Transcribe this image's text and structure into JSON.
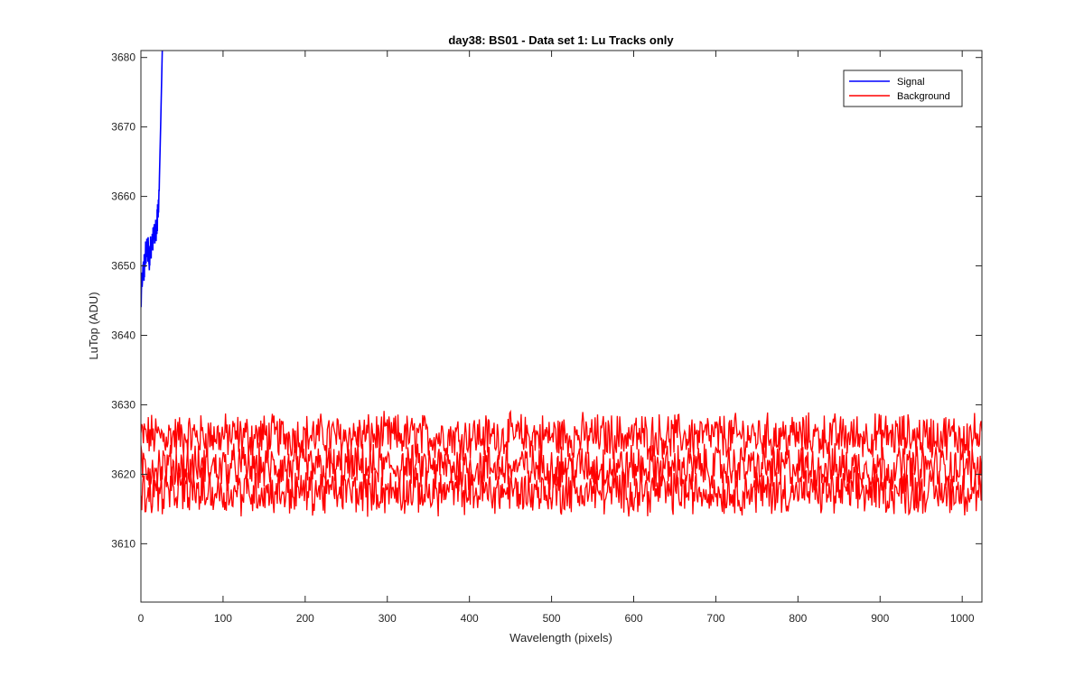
{
  "chart_data": {
    "type": "line",
    "title": "day38: BS01 - Data set 1: Lu Tracks only",
    "xlabel": "Wavelength (pixels)",
    "ylabel": "LuTop (ADU)",
    "xlim": [
      0,
      1024
    ],
    "ylim": [
      3601.6,
      3681
    ],
    "x_ticks": [
      0,
      100,
      200,
      300,
      400,
      500,
      600,
      700,
      800,
      900,
      1000
    ],
    "y_ticks": [
      3610,
      3620,
      3630,
      3640,
      3650,
      3660,
      3670,
      3680
    ],
    "grid": false,
    "legend_position": "top-right",
    "legend": [
      "Signal",
      "Background"
    ],
    "colors": {
      "signal": "#0000ff",
      "background": "#ff0000",
      "axes": "#262626"
    },
    "series": [
      {
        "name": "Signal",
        "color": "#0000ff",
        "x": [
          0,
          2,
          4,
          6,
          8,
          10,
          12,
          14,
          16,
          18,
          20,
          22,
          24,
          26
        ],
        "y": [
          3645.5,
          3648,
          3650,
          3652,
          3653,
          3651,
          3652.5,
          3653.5,
          3654,
          3655,
          3656.5,
          3660,
          3670,
          3681
        ]
      },
      {
        "name": "Background",
        "color": "#ff0000",
        "note_level_bands": [
          3625.5,
          3621,
          3617.5
        ],
        "x": [
          0,
          100,
          200,
          300,
          400,
          500,
          600,
          700,
          800,
          900,
          1024
        ],
        "y_upper_band": [
          3625.5,
          3625.5,
          3625.5,
          3625.5,
          3625.5,
          3625.5,
          3625.5,
          3625.5,
          3625.5,
          3625.5,
          3625.5
        ],
        "y_middle_band": [
          3621,
          3621,
          3621,
          3621,
          3621,
          3621,
          3621,
          3621,
          3621,
          3621,
          3621
        ],
        "y_lower_band": [
          3617.5,
          3617.5,
          3617.5,
          3617.5,
          3617.5,
          3617.5,
          3617.5,
          3617.5,
          3617.5,
          3617.5,
          3617.5
        ]
      }
    ]
  }
}
